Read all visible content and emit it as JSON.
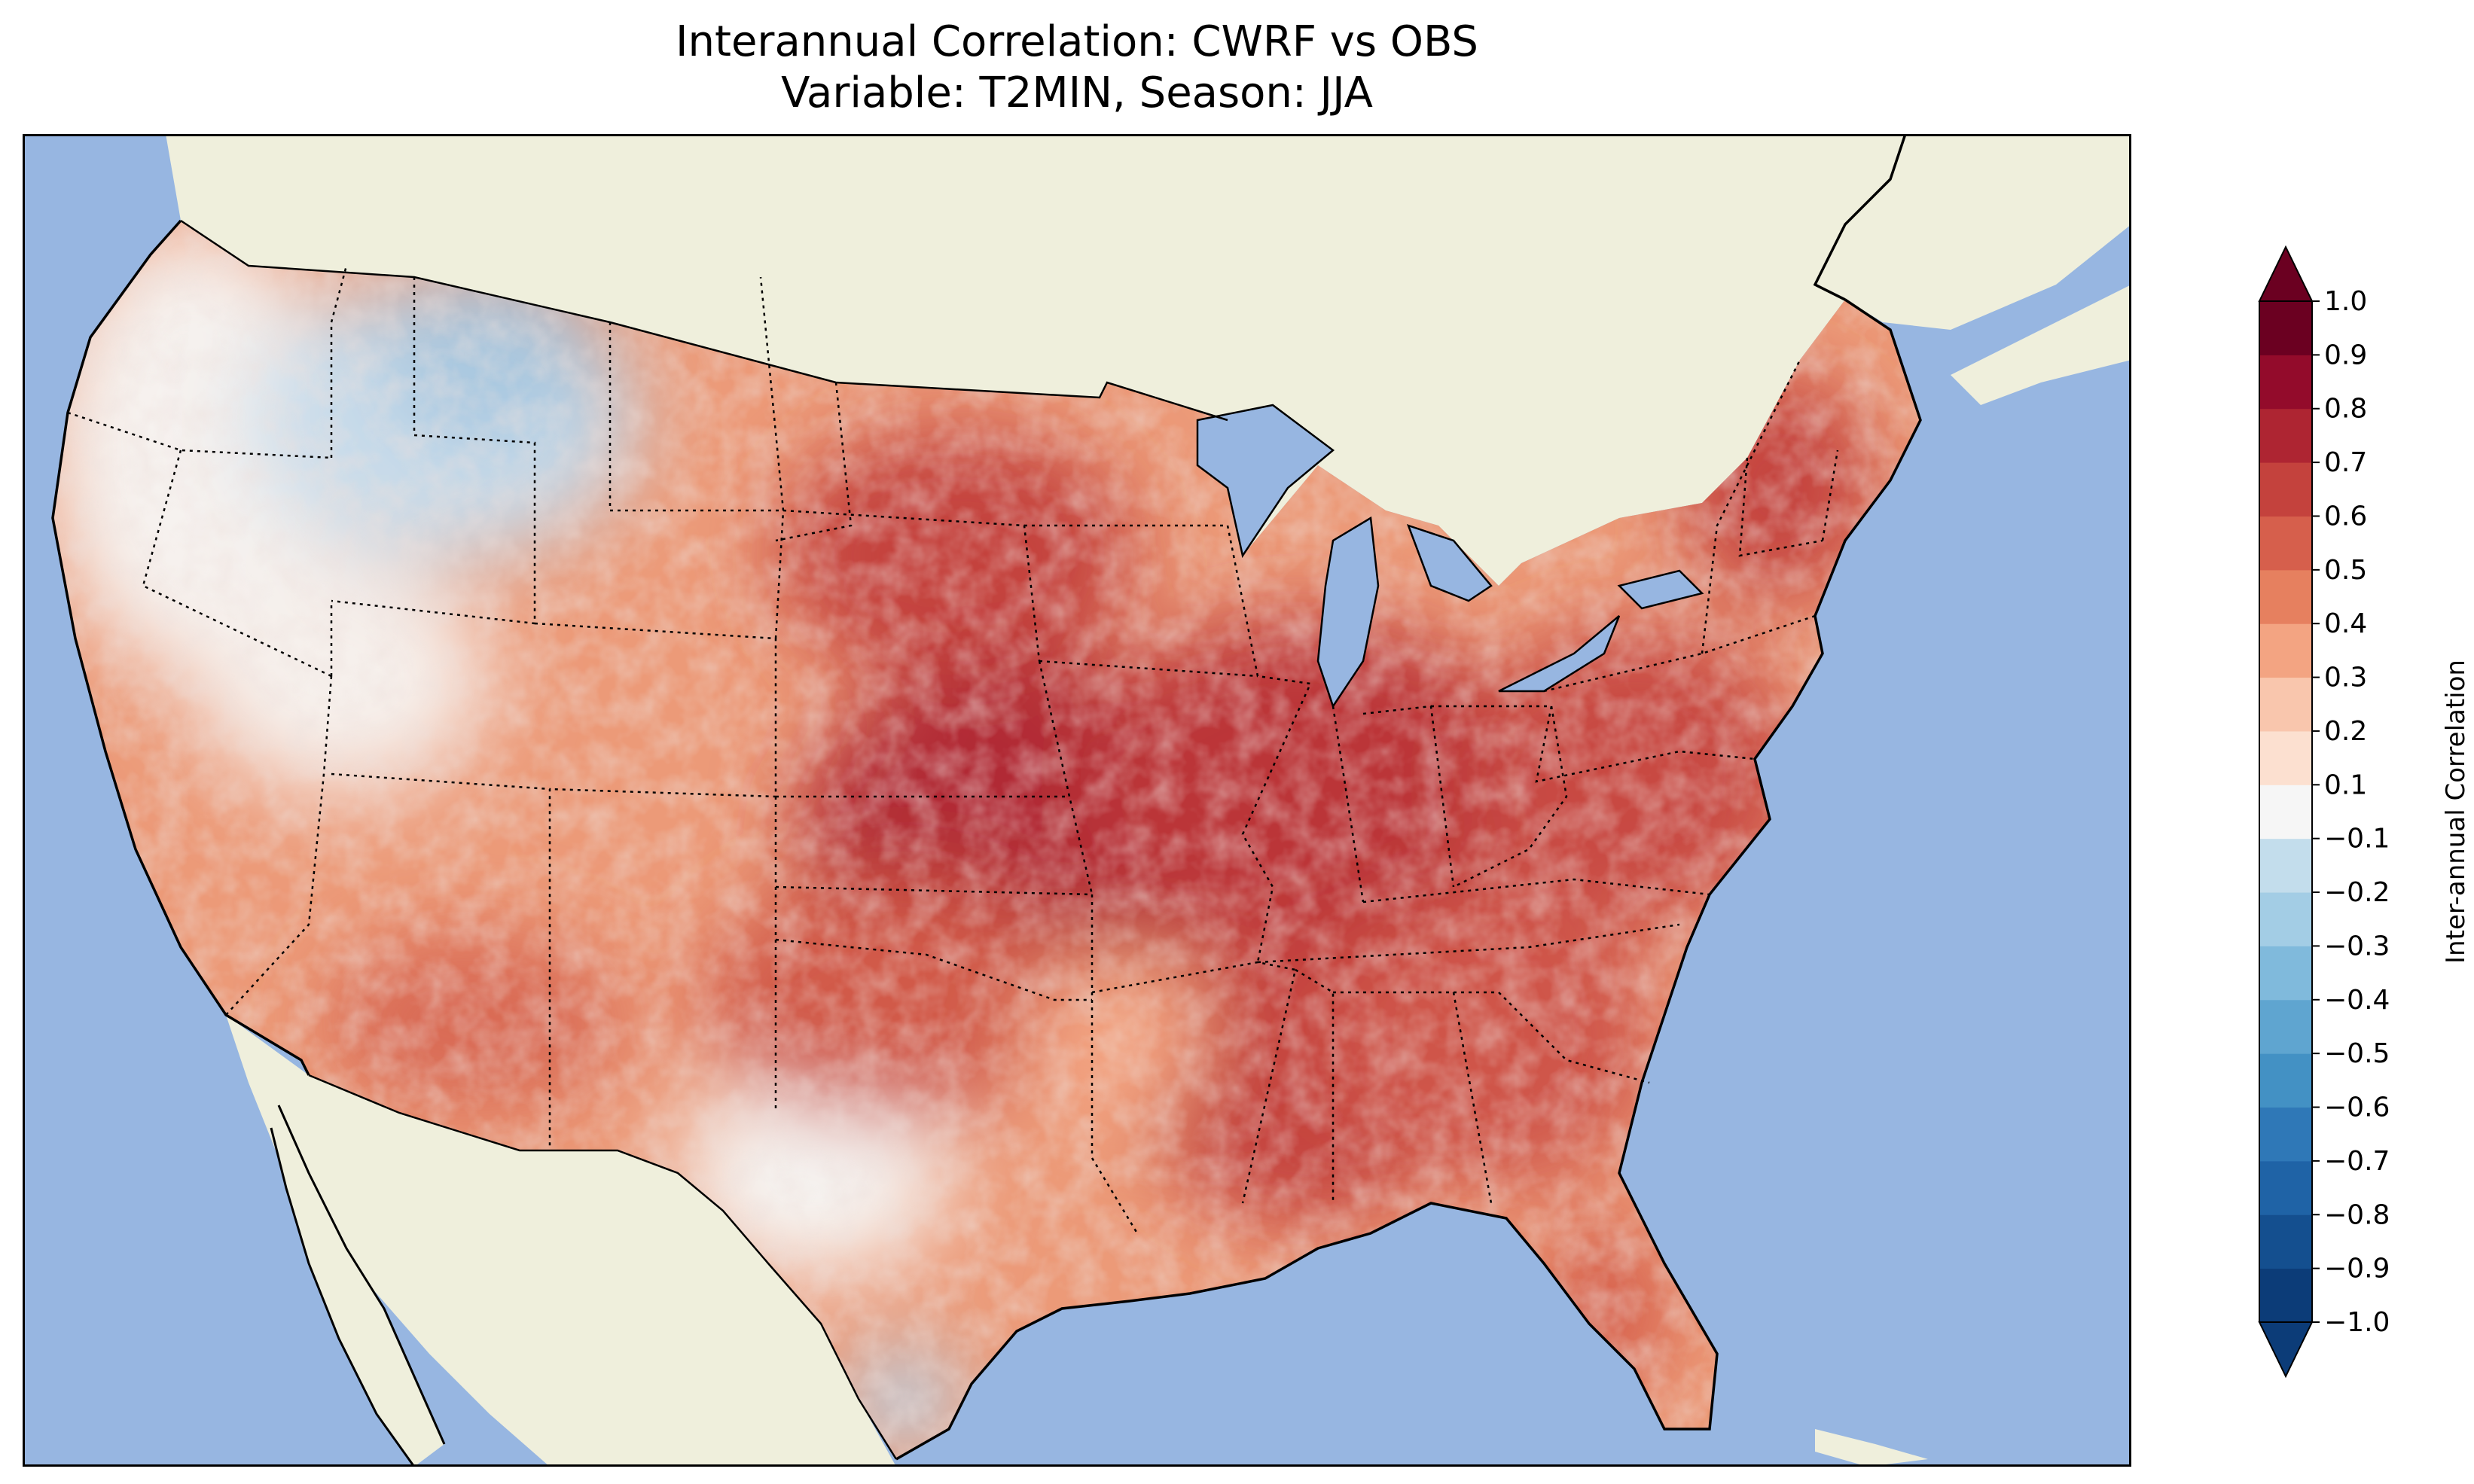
{
  "title_line1": "Interannual Correlation: CWRF vs OBS",
  "title_line2": "Variable: T2MIN, Season: JJA",
  "colorbar": {
    "label": "Inter-annual Correlation",
    "ticks": [
      "1.0",
      "0.9",
      "0.8",
      "0.7",
      "0.6",
      "0.5",
      "0.4",
      "0.3",
      "0.2",
      "0.1",
      "−0.1",
      "−0.2",
      "−0.3",
      "−0.4",
      "−0.5",
      "−0.6",
      "−0.7",
      "−0.8",
      "−0.9",
      "−1.0"
    ],
    "levels": [
      -1.0,
      -0.9,
      -0.8,
      -0.7,
      -0.6,
      -0.5,
      -0.4,
      -0.3,
      -0.2,
      -0.1,
      0.1,
      0.2,
      0.3,
      0.4,
      0.5,
      0.6,
      0.7,
      0.8,
      0.9,
      1.0
    ],
    "colors_low_to_high": [
      "#0c3c78",
      "#144f8f",
      "#1f63a6",
      "#2f78b7",
      "#4391c4",
      "#5fa5d0",
      "#80badc",
      "#a3cde5",
      "#c3ddec",
      "#dce9f2",
      "#f6f6f6",
      "#fce0d0",
      "#f9c6ad",
      "#f3a482",
      "#e6805f",
      "#d65f4c",
      "#c4423d",
      "#ae2532",
      "#930b2b",
      "#6b0021"
    ],
    "extend": "both"
  },
  "map": {
    "region": "Contiguous United States",
    "ocean_color": "#97b6e1",
    "land_color": "#efefdc",
    "state_border_style": "dotted",
    "coastline_color": "#000000"
  }
}
